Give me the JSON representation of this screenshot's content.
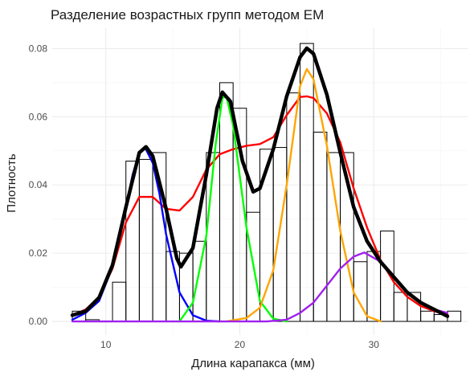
{
  "chart_data": {
    "type": "histogram",
    "title": "Разделение возрастных групп методом EM",
    "xlabel": "Длина карапакса (мм)",
    "ylabel": "Плотность",
    "xlim": [
      6,
      37
    ],
    "ylim": [
      -0.004,
      0.086
    ],
    "x_ticks": [
      "10",
      "20",
      "30"
    ],
    "y_ticks": [
      "0.00",
      "0.02",
      "0.04",
      "0.06",
      "0.08"
    ],
    "grid": true,
    "legend": "none",
    "histogram": {
      "bin_width": 1,
      "bins": [
        {
          "x0": 7.5,
          "density": 0.003
        },
        {
          "x0": 8.5,
          "density": 0.0005
        },
        {
          "x0": 9.5,
          "density": 0.0
        },
        {
          "x0": 10.5,
          "density": 0.0115
        },
        {
          "x0": 11.5,
          "density": 0.047
        },
        {
          "x0": 12.5,
          "density": 0.0475
        },
        {
          "x0": 13.5,
          "density": 0.0495
        },
        {
          "x0": 14.5,
          "density": 0.0205
        },
        {
          "x0": 15.5,
          "density": 0.02
        },
        {
          "x0": 16.5,
          "density": 0.0235
        },
        {
          "x0": 17.5,
          "density": 0.0495
        },
        {
          "x0": 18.5,
          "density": 0.07
        },
        {
          "x0": 19.5,
          "density": 0.0625
        },
        {
          "x0": 20.5,
          "density": 0.032
        },
        {
          "x0": 21.5,
          "density": 0.0505
        },
        {
          "x0": 22.5,
          "density": 0.051
        },
        {
          "x0": 23.5,
          "density": 0.067
        },
        {
          "x0": 24.5,
          "density": 0.0815
        },
        {
          "x0": 25.5,
          "density": 0.0555
        },
        {
          "x0": 26.5,
          "density": 0.0495
        },
        {
          "x0": 27.5,
          "density": 0.0495
        },
        {
          "x0": 28.5,
          "density": 0.0175
        },
        {
          "x0": 29.5,
          "density": 0.0205
        },
        {
          "x0": 30.5,
          "density": 0.0265
        },
        {
          "x0": 31.5,
          "density": 0.0085
        },
        {
          "x0": 32.5,
          "density": 0.0085
        },
        {
          "x0": 33.5,
          "density": 0.003
        },
        {
          "x0": 34.5,
          "density": 0.002
        },
        {
          "x0": 35.5,
          "density": 0.003
        }
      ]
    },
    "series": [
      {
        "type": "line",
        "color": "#ff0000",
        "points": [
          [
            7.5,
            0.0018
          ],
          [
            8.5,
            0.0035
          ],
          [
            9.5,
            0.0072
          ],
          [
            10.5,
            0.0155
          ],
          [
            11.5,
            0.029
          ],
          [
            12.5,
            0.0365
          ],
          [
            13.5,
            0.0365
          ],
          [
            14.5,
            0.033
          ],
          [
            15.5,
            0.0325
          ],
          [
            16.5,
            0.0365
          ],
          [
            17.5,
            0.0445
          ],
          [
            18.5,
            0.049
          ],
          [
            19.5,
            0.0505
          ],
          [
            20.5,
            0.0515
          ],
          [
            21.5,
            0.052
          ],
          [
            22.5,
            0.054
          ],
          [
            23.5,
            0.0605
          ],
          [
            24.5,
            0.0658
          ],
          [
            25,
            0.066
          ],
          [
            25.5,
            0.0655
          ],
          [
            26.5,
            0.061
          ],
          [
            27.5,
            0.0525
          ],
          [
            28.5,
            0.039
          ],
          [
            29.5,
            0.0275
          ],
          [
            30.5,
            0.018
          ],
          [
            31.5,
            0.0115
          ],
          [
            32.5,
            0.0072
          ],
          [
            33.5,
            0.0045
          ],
          [
            34.5,
            0.003
          ],
          [
            35.5,
            0.002
          ]
        ]
      },
      {
        "type": "line",
        "color": "#0000ff",
        "points": [
          [
            7.5,
            0.0005
          ],
          [
            8.5,
            0.0025
          ],
          [
            9.5,
            0.006
          ],
          [
            10.5,
            0.016
          ],
          [
            11.5,
            0.0335
          ],
          [
            12,
            0.043
          ],
          [
            12.5,
            0.0495
          ],
          [
            12.9,
            0.0512
          ],
          [
            13.5,
            0.0465
          ],
          [
            14,
            0.0375
          ],
          [
            14.5,
            0.0255
          ],
          [
            15.5,
            0.0085
          ],
          [
            16.5,
            0.0018
          ],
          [
            17.5,
            0.0002
          ],
          [
            18.5,
            0.0
          ]
        ]
      },
      {
        "type": "line",
        "color": "#00ff00",
        "points": [
          [
            15.5,
            0.0
          ],
          [
            16.5,
            0.0055
          ],
          [
            17.5,
            0.025
          ],
          [
            18.2,
            0.052
          ],
          [
            18.7,
            0.0655
          ],
          [
            19,
            0.066
          ],
          [
            19.5,
            0.0575
          ],
          [
            20.5,
            0.0275
          ],
          [
            21.5,
            0.006
          ],
          [
            22.5,
            0.0008
          ],
          [
            23.5,
            0.0
          ]
        ]
      },
      {
        "type": "line",
        "color": "#ffa500",
        "points": [
          [
            19,
            0.0
          ],
          [
            20.5,
            0.001
          ],
          [
            21.5,
            0.004
          ],
          [
            22.5,
            0.015
          ],
          [
            23.5,
            0.04
          ],
          [
            24.5,
            0.069
          ],
          [
            25,
            0.074
          ],
          [
            25.5,
            0.071
          ],
          [
            26.5,
            0.0515
          ],
          [
            27.5,
            0.0265
          ],
          [
            28.5,
            0.0085
          ],
          [
            29.5,
            0.0015
          ],
          [
            30.5,
            0.0
          ]
        ]
      },
      {
        "type": "line",
        "color": "#a020f0",
        "points": [
          [
            7.5,
            0.0
          ],
          [
            22,
            0.0
          ],
          [
            23.5,
            0.0005
          ],
          [
            24.5,
            0.0025
          ],
          [
            25.5,
            0.0055
          ],
          [
            26.5,
            0.0105
          ],
          [
            27.5,
            0.0155
          ],
          [
            28.5,
            0.019
          ],
          [
            29.3,
            0.0202
          ],
          [
            30.5,
            0.0175
          ],
          [
            31.5,
            0.013
          ],
          [
            32.5,
            0.0085
          ],
          [
            33.5,
            0.0055
          ],
          [
            34.5,
            0.0035
          ],
          [
            35.5,
            0.0025
          ]
        ]
      },
      {
        "type": "line",
        "color": "#000000",
        "points": [
          [
            7.5,
            0.0018
          ],
          [
            8.5,
            0.003
          ],
          [
            9.5,
            0.007
          ],
          [
            10.5,
            0.0165
          ],
          [
            11.5,
            0.0335
          ],
          [
            12.5,
            0.0495
          ],
          [
            13,
            0.0512
          ],
          [
            13.5,
            0.0485
          ],
          [
            14.5,
            0.033
          ],
          [
            15.3,
            0.0185
          ],
          [
            15.6,
            0.016
          ],
          [
            16.5,
            0.0215
          ],
          [
            17.5,
            0.043
          ],
          [
            18.3,
            0.0625
          ],
          [
            18.7,
            0.0672
          ],
          [
            19.3,
            0.0645
          ],
          [
            20.2,
            0.047
          ],
          [
            21,
            0.038
          ],
          [
            21.5,
            0.039
          ],
          [
            22.5,
            0.0505
          ],
          [
            23.5,
            0.066
          ],
          [
            24.5,
            0.0775
          ],
          [
            25,
            0.0801
          ],
          [
            25.5,
            0.0785
          ],
          [
            26.5,
            0.0665
          ],
          [
            27.5,
            0.0495
          ],
          [
            28.5,
            0.0335
          ],
          [
            29.5,
            0.0235
          ],
          [
            30.5,
            0.0175
          ],
          [
            31.5,
            0.013
          ],
          [
            32.5,
            0.0085
          ],
          [
            33.5,
            0.0055
          ],
          [
            34.5,
            0.0035
          ],
          [
            35.5,
            0.0015
          ]
        ]
      }
    ]
  }
}
